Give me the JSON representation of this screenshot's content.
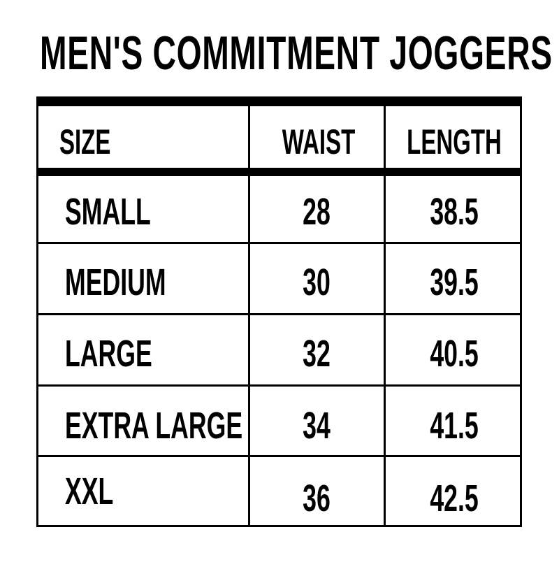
{
  "title": "MEN'S COMMITMENT JOGGERS",
  "table": {
    "headers": [
      "SIZE",
      "WAIST",
      "LENGTH"
    ],
    "rows": [
      {
        "size": "SMALL",
        "waist": "28",
        "length": "38.5"
      },
      {
        "size": "MEDIUM",
        "waist": "30",
        "length": "39.5"
      },
      {
        "size": "LARGE",
        "waist": "32",
        "length": "40.5"
      },
      {
        "size": "EXTRA LARGE",
        "waist": "34",
        "length": "41.5"
      },
      {
        "size": "XXL",
        "waist": "36",
        "length": "42.5"
      }
    ]
  }
}
